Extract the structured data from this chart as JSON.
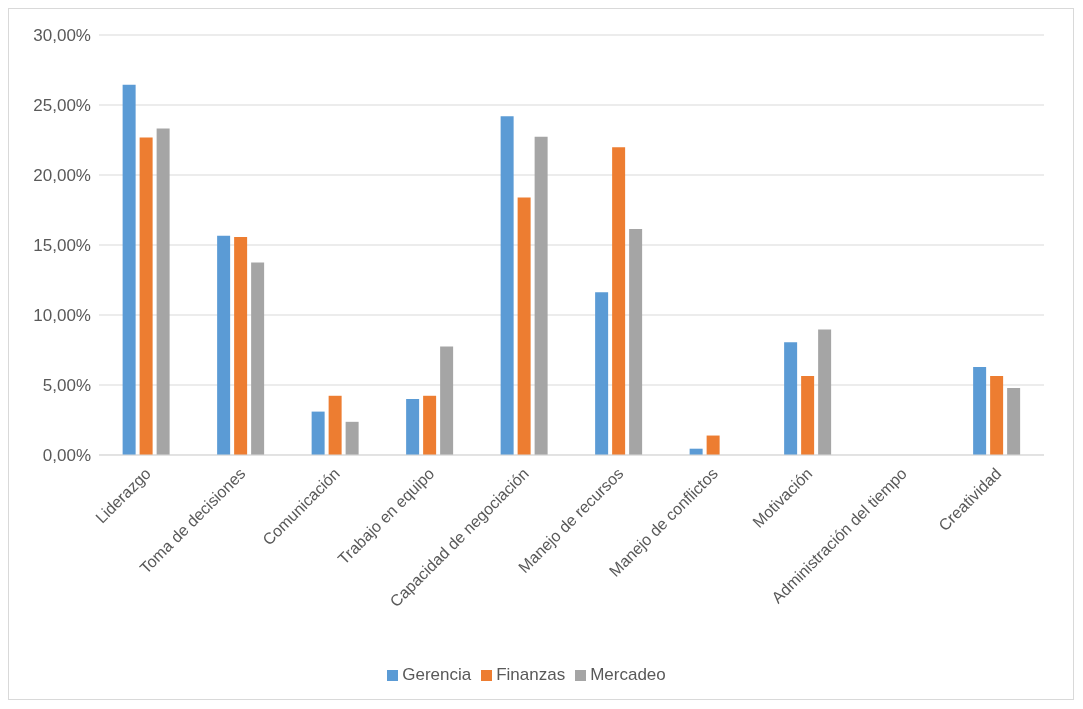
{
  "chart_data": {
    "type": "bar",
    "categories": [
      "Liderazgo",
      "Toma de decisiones",
      "Comunicación",
      "Trabajo en equipo",
      "Capacidad de negociación",
      "Manejo de recursos",
      "Manejo de conflictos",
      "Motivación",
      "Administración del tiempo",
      "Creatividad"
    ],
    "series": [
      {
        "name": "Gerencia",
        "color": "#5b9bd5",
        "values": [
          26.45,
          15.66,
          3.1,
          4.0,
          24.2,
          11.62,
          0.45,
          8.05,
          0,
          6.28
        ]
      },
      {
        "name": "Finanzas",
        "color": "#ed7d31",
        "values": [
          22.68,
          15.58,
          4.23,
          4.23,
          18.4,
          21.98,
          1.39,
          5.65,
          0,
          5.65
        ]
      },
      {
        "name": "Mercadeo",
        "color": "#a5a5a5",
        "values": [
          23.32,
          13.75,
          2.37,
          7.75,
          22.73,
          16.15,
          0,
          8.97,
          0,
          4.79
        ]
      }
    ],
    "ylim": [
      0,
      30
    ],
    "yticks": [
      {
        "value": 0,
        "label": "0,00%"
      },
      {
        "value": 5,
        "label": "5,00%"
      },
      {
        "value": 10,
        "label": "10,00%"
      },
      {
        "value": 15,
        "label": "15,00%"
      },
      {
        "value": 20,
        "label": "20,00%"
      },
      {
        "value": 25,
        "label": "25,00%"
      },
      {
        "value": 30,
        "label": "30,00%"
      }
    ],
    "grid": "y",
    "legend": "bottom"
  }
}
